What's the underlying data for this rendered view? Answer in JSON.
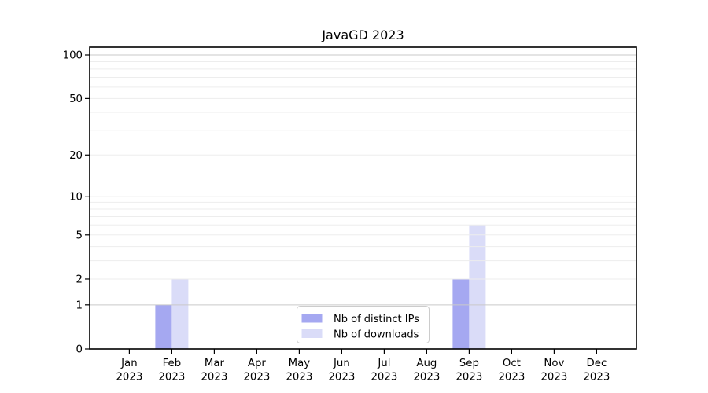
{
  "chart_data": {
    "type": "bar",
    "title": "JavaGD 2023",
    "categories": [
      "Jan",
      "Feb",
      "Mar",
      "Apr",
      "May",
      "Jun",
      "Jul",
      "Aug",
      "Sep",
      "Oct",
      "Nov",
      "Dec"
    ],
    "year_label": "2023",
    "series": [
      {
        "name": "Nb of distinct IPs",
        "color": "#a5a8f1",
        "values": [
          0,
          1,
          0,
          0,
          0,
          0,
          0,
          0,
          2,
          0,
          0,
          0
        ]
      },
      {
        "name": "Nb of downloads",
        "color": "#dadcf8",
        "values": [
          0,
          2,
          0,
          0,
          0,
          0,
          0,
          0,
          6,
          0,
          0,
          0
        ]
      }
    ],
    "xlabel": "",
    "ylabel": "",
    "yscale": "log1p",
    "ylim": [
      0,
      100
    ],
    "ytick_values": [
      0,
      1,
      2,
      5,
      10,
      20,
      50,
      100
    ],
    "grid": {
      "major_values": [
        1,
        10,
        100
      ],
      "minor_values": [
        2,
        3,
        4,
        5,
        6,
        7,
        8,
        9,
        20,
        30,
        40,
        50,
        60,
        70,
        80,
        90
      ],
      "major_color": "#c9c9c9",
      "minor_color": "#ededed"
    },
    "legend": {
      "position": "bottom-center-inside",
      "entries": [
        "Nb of distinct IPs",
        "Nb of downloads"
      ],
      "border_color": "#cccccc",
      "background": "#ffffff"
    },
    "axis_color": "#000000",
    "background_color": "#ffffff"
  }
}
